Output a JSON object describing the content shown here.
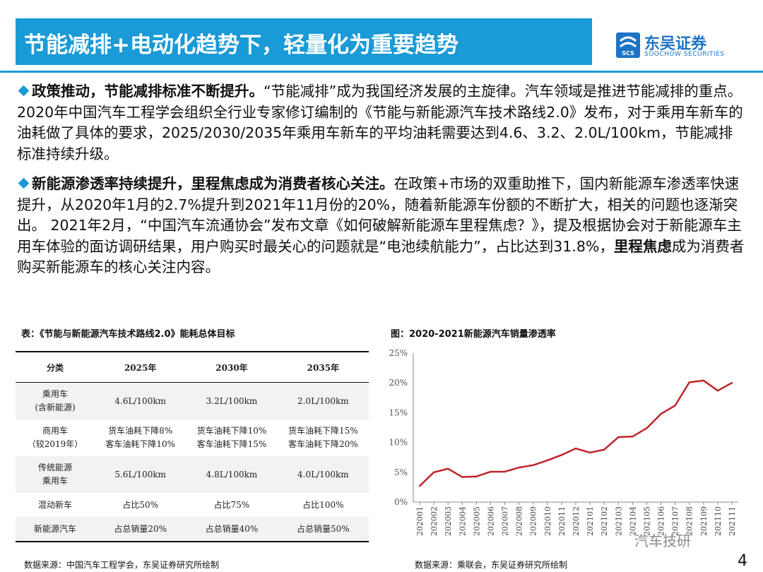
{
  "header": {
    "title": "节能减排+电动化趋势下，轻量化为重要趋势",
    "logo_cn": "东吴证券",
    "logo_en": "SOOCHOW SECURITIES",
    "logo_mark": "SCS"
  },
  "para1": {
    "bold": "政策推动，节能减排标准不断提升。",
    "text": "“节能减排”成为我国经济发展的主旋律。汽车领域是推进节能减排的重点。2020年中国汽车工程学会组织全行业专家修订编制的《节能与新能源汽车技术路线2.0》发布，对于乘用车新车的油耗做了具体的要求，2025/2030/2035年乘用车新车的平均油耗需要达到4.6、3.2、2.0L/100km，节能减排标准持续升级。"
  },
  "para2": {
    "bold": "新能源渗透率持续提升，里程焦虑成为消费者核心关注。",
    "text1": "在政策+市场的双重助推下，国内新能源车渗透率快速提升，从2020年1月的2.7%提升到2021年11月份的20%，随着新能源车份额的不断扩大，相关的问题也逐渐突出。 2021年2月，“中国汽车流通协会”发布文章《如何破解新能源车里程焦虑？》，提及根据协会对于新能源车主用车体验的面访调研结果，用户购买时最关心的问题就是“电池续航能力”，占比达到31.8%，",
    "bold2": "里程焦虑",
    "text2": "成为消费者购买新能源车的核心关注内容。"
  },
  "table": {
    "caption": "表：《节能与新能源汽车技术路线2.0》能耗总体目标",
    "headers": [
      "分类",
      "2025年",
      "2030年",
      "2035年"
    ],
    "rows": [
      {
        "cat1": "乘用车",
        "cat2": "(含新能源)",
        "v1": "4.6L/100km",
        "v1b": "",
        "v2": "3.2L/100km",
        "v2b": "",
        "v3": "2.0L/100km",
        "v3b": ""
      },
      {
        "cat1": "商用车",
        "cat2": "（较2019年）",
        "v1": "货车油耗下降8%",
        "v1b": "客车油耗下降10%",
        "v2": "货车油耗下降10%",
        "v2b": "客车油耗下降15%",
        "v3": "货车油耗下降15%",
        "v3b": "客车油耗下降20%"
      },
      {
        "cat1": "传统能源",
        "cat2": "乘用车",
        "v1": "5.6L/100km",
        "v1b": "",
        "v2": "4.8L/100km",
        "v2b": "",
        "v3": "4.0L/100km",
        "v3b": ""
      },
      {
        "cat1": "混动新车",
        "cat2": "",
        "v1": "占比50%",
        "v1b": "",
        "v2": "占比75%",
        "v2b": "",
        "v3": "占比100%",
        "v3b": ""
      },
      {
        "cat1": "新能源汽车",
        "cat2": "",
        "v1": "占总销量20%",
        "v1b": "",
        "v2": "占总销量40%",
        "v2b": "",
        "v3": "占总销量50%",
        "v3b": ""
      }
    ]
  },
  "chart_caption": "图：2020-2021新能源汽车销量渗透率",
  "chart_data": {
    "type": "line",
    "title": "",
    "xlabel": "",
    "ylabel": "",
    "categories": [
      "202001",
      "202002",
      "202003",
      "202004",
      "202005",
      "202006",
      "202007",
      "202008",
      "202009",
      "202010",
      "202011",
      "202012",
      "202101",
      "202102",
      "202103",
      "202104",
      "202105",
      "202106",
      "202107",
      "202108",
      "202109",
      "202110",
      "202111"
    ],
    "series": [
      {
        "values": [
          2.7,
          5.0,
          5.6,
          4.2,
          4.3,
          5.1,
          5.1,
          5.8,
          6.2,
          7.0,
          7.9,
          9.0,
          8.3,
          8.8,
          10.9,
          11.0,
          12.4,
          14.8,
          16.2,
          20.1,
          20.4,
          18.7,
          20.0
        ]
      }
    ],
    "ylim": [
      0,
      25
    ],
    "yticks": [
      "0%",
      "5%",
      "10%",
      "15%",
      "20%",
      "25%"
    ],
    "ytick_values": [
      0,
      5,
      10,
      15,
      20,
      25
    ],
    "grid": false,
    "line_color": "#c0232c"
  },
  "sources": {
    "left": "数据来源：中国汽车工程学会，东吴证券研究所绘制",
    "right": "数据来源：乘联会，东吴证券研究所绘制"
  },
  "page_number": "4",
  "watermark": "汽车技研",
  "colors": {
    "accent": "#1a9ad6",
    "logo": "#1d74c4",
    "line": "#c0232c"
  }
}
